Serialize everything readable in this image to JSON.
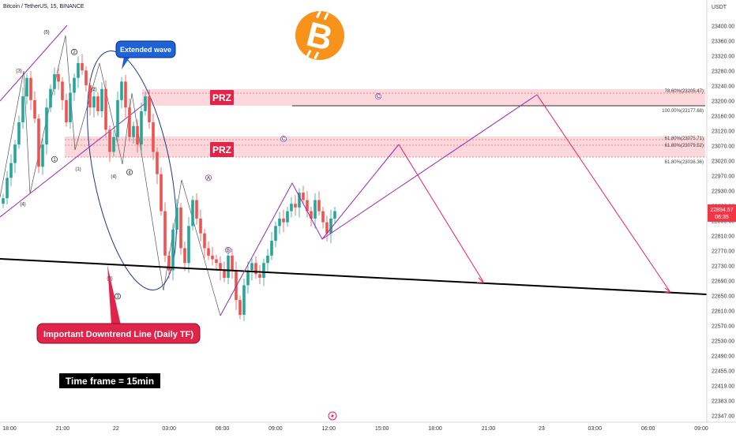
{
  "symbol": {
    "text": "Bitcoin / TetherUS, 15, BINANCE"
  },
  "currency": "USDT",
  "price_badge": {
    "price": "22894.57",
    "countdown": "06:35",
    "color": "#f23645"
  },
  "colors": {
    "up": "#26a69a",
    "down": "#ef5350",
    "wave": "#9c27b0",
    "projection": "#e91e63",
    "ellipse": "#1e3a8a",
    "trend": "#000000",
    "zone": "#fbd0d6"
  },
  "icons": {
    "logo": "bitcoin-logo-icon",
    "replay": "lightning-replay-icon"
  },
  "annotations": {
    "extended_wave": "Extended wave",
    "prz_upper": "PRZ",
    "prz_lower": "PRZ",
    "downtrend": "Important Downtrend Line (Daily TF)",
    "timeframe": "Time frame = 15min"
  },
  "fib_levels": [
    {
      "text": "78.60%(23205.47)",
      "price": 23205.47
    },
    {
      "text": "100.00%(23177.68)",
      "price": 23177.68
    },
    {
      "text": "61.80%(23075.71)",
      "price": 23075.71
    },
    {
      "text": "61.80%(23079.52)",
      "price": 23079.52
    },
    {
      "text": "61.80%(23036.36)",
      "price": 23036.36
    }
  ],
  "chart_data": {
    "type": "candlestick",
    "title": "Bitcoin / TetherUS, 15, BINANCE",
    "ylim": [
      22347,
      23430
    ],
    "y_ticks": [
      "23400.00",
      "23360.00",
      "23320.00",
      "23280.00",
      "23240.00",
      "23200.00",
      "23160.00",
      "23120.00",
      "23070.00",
      "23020.00",
      "22970.00",
      "22930.00",
      "22890.00",
      "22850.00",
      "22810.00",
      "22770.00",
      "22730.00",
      "22690.00",
      "22650.00",
      "22610.00",
      "22570.00",
      "22530.00",
      "22490.00",
      "22455.00",
      "22419.00",
      "22383.00",
      "22347.00"
    ],
    "x_ticks": [
      "18:00",
      "21:00",
      "22",
      "03:00",
      "06:00",
      "09:00",
      "12:00",
      "15:00",
      "18:00",
      "21:00",
      "23",
      "03:00",
      "06:00",
      "09:00"
    ],
    "close_path": [
      22935,
      22990,
      23030,
      23080,
      23140,
      23210,
      23260,
      23200,
      23150,
      23020,
      23080,
      23180,
      23230,
      23270,
      23250,
      23200,
      23140,
      23220,
      23260,
      23300,
      23280,
      23240,
      23180,
      23210,
      23170,
      23230,
      23120,
      23060,
      23100,
      23200,
      23250,
      23180,
      23100,
      23130,
      23080,
      23170,
      23210,
      23140,
      23060,
      23000,
      22900,
      22780,
      22740,
      22850,
      22910,
      22800,
      22760,
      22860,
      22930,
      22880,
      22840,
      22800,
      22780,
      22770,
      22760,
      22740,
      22720,
      22780,
      22740,
      22660,
      22620,
      22700,
      22740,
      22760,
      22730,
      22720,
      22760,
      22780,
      22820,
      22860,
      22880,
      22870,
      22900,
      22920,
      22910,
      22950,
      22930,
      22900,
      22880,
      22930,
      22900,
      22870,
      22840,
      22880,
      22900
    ],
    "wave_labels": [
      {
        "text": "(3)",
        "t": 4,
        "p": 23275
      },
      {
        "text": "(4)",
        "t": 5,
        "p": 22915
      },
      {
        "text": "(5)",
        "t": 11,
        "p": 23380
      },
      {
        "text": "(1)",
        "t": 19,
        "p": 23010
      },
      {
        "text": "(2)",
        "t": 23,
        "p": 23225
      },
      {
        "text": "(3)",
        "t": 27,
        "p": 22715
      },
      {
        "text": "(4)",
        "t": 28,
        "p": 22990
      }
    ],
    "wave_circles": [
      {
        "text": "1",
        "t": 13,
        "p": 23040
      },
      {
        "text": "2",
        "t": 18,
        "p": 23330
      },
      {
        "text": "3",
        "t": 29,
        "p": 22670
      },
      {
        "text": "4",
        "t": 32,
        "p": 23005
      },
      {
        "text": "5",
        "t": 39,
        "p": 22585
      },
      {
        "text": "A",
        "t": 52,
        "p": 22990
      },
      {
        "text": "B",
        "t": 57,
        "p": 22795
      },
      {
        "text": "C",
        "t": 71,
        "p": 23095
      },
      {
        "text": "C",
        "t": 95,
        "p": 23210
      }
    ]
  }
}
